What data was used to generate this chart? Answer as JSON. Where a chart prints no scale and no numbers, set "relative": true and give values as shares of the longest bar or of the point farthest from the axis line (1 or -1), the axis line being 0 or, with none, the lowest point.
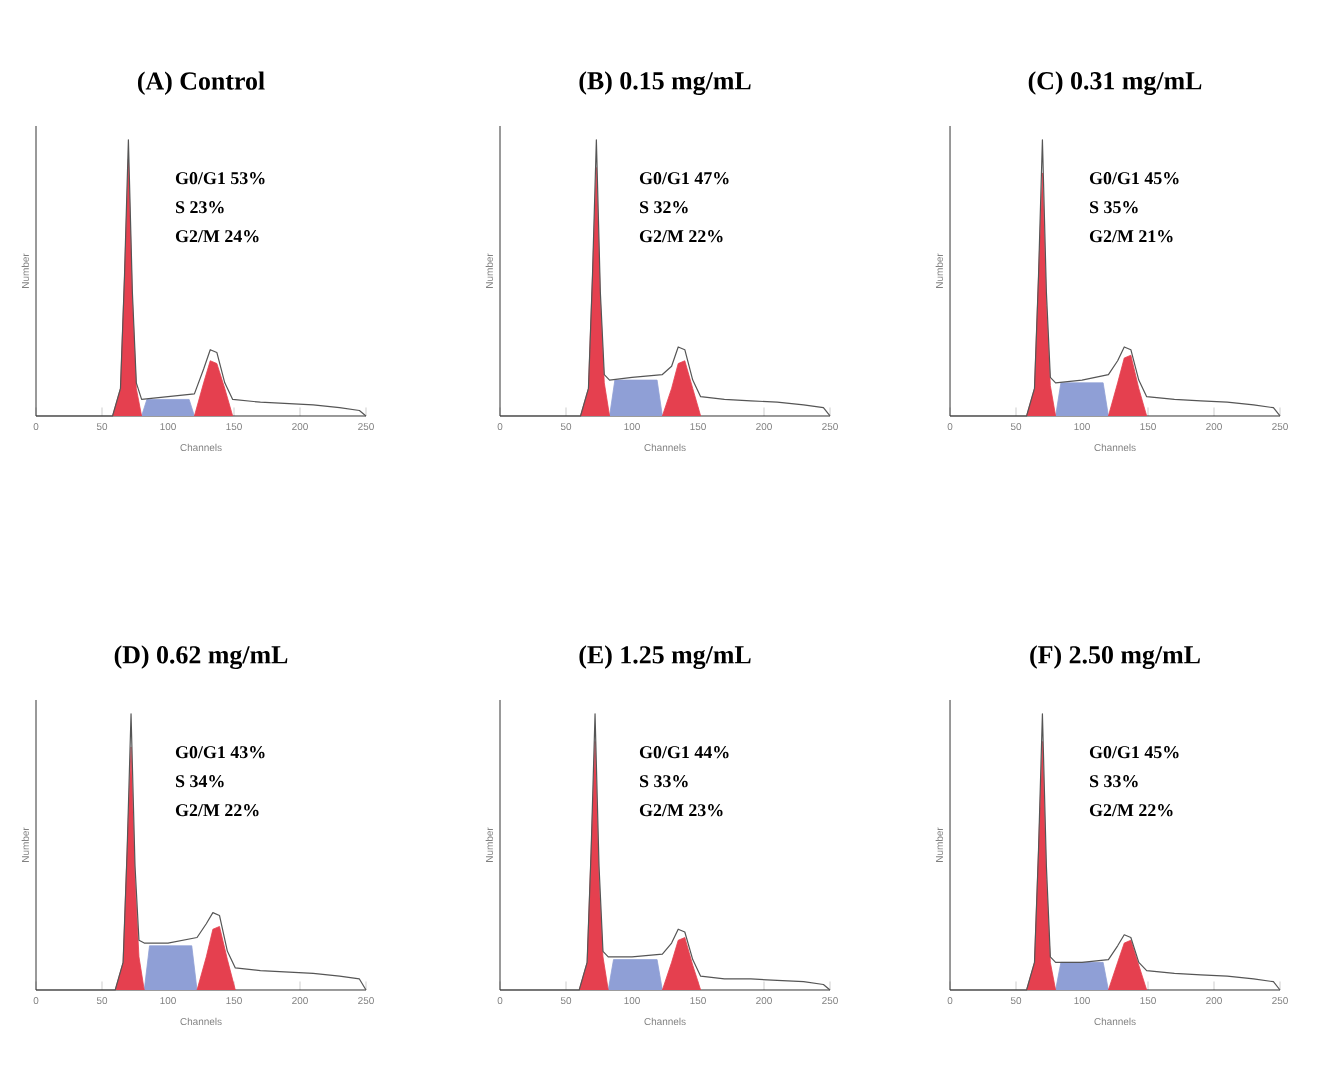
{
  "chart_data": [
    {
      "type": "area",
      "title": "(A) Control",
      "xlabel": "Channels",
      "ylabel": "Number",
      "relative": true,
      "xlim": [
        0,
        250
      ],
      "xticks": [
        0,
        50,
        100,
        150,
        200,
        250
      ],
      "annotations": [
        "G0/G1   53%",
        "S         23%",
        "G2/M    24%"
      ],
      "series": [
        {
          "color": "#8f9fd6",
          "x": [
            80,
            84,
            100,
            116,
            120
          ],
          "values": [
            0,
            0.06,
            0.06,
            0.06,
            0
          ]
        },
        {
          "color": "#e5404f",
          "x": [
            120,
            127,
            132,
            137,
            143,
            149
          ],
          "values": [
            0,
            0.12,
            0.2,
            0.19,
            0.1,
            0
          ]
        },
        {
          "color": "#e5404f",
          "x": [
            58,
            64,
            67,
            70,
            73,
            76,
            80
          ],
          "values": [
            0,
            0.1,
            0.5,
            0.93,
            0.42,
            0.1,
            0
          ]
        },
        {
          "type": "line",
          "color": "#555555",
          "x": [
            0,
            58,
            64,
            67,
            70,
            73,
            76,
            80,
            100,
            120,
            127,
            132,
            137,
            143,
            149,
            170,
            190,
            210,
            230,
            245,
            250
          ],
          "values": [
            0,
            0,
            0.1,
            0.5,
            1,
            0.45,
            0.12,
            0.06,
            0.07,
            0.08,
            0.17,
            0.24,
            0.23,
            0.12,
            0.06,
            0.05,
            0.045,
            0.04,
            0.03,
            0.02,
            0
          ]
        }
      ]
    },
    {
      "type": "area",
      "title": "(B) 0.15 mg/mL",
      "xlabel": "Channels",
      "ylabel": "Number",
      "relative": true,
      "xlim": [
        0,
        250
      ],
      "xticks": [
        0,
        50,
        100,
        150,
        200,
        250
      ],
      "annotations": [
        "G0/G1   47%",
        "S         32%",
        "G2/M    22%"
      ],
      "series": [
        {
          "color": "#8f9fd6",
          "x": [
            83,
            87,
            100,
            119,
            123
          ],
          "values": [
            0,
            0.13,
            0.13,
            0.13,
            0
          ]
        },
        {
          "color": "#e5404f",
          "x": [
            123,
            130,
            135,
            140,
            146,
            152
          ],
          "values": [
            0,
            0.1,
            0.19,
            0.2,
            0.1,
            0
          ]
        },
        {
          "color": "#e5404f",
          "x": [
            61,
            67,
            70,
            73,
            76,
            79,
            83
          ],
          "values": [
            0,
            0.1,
            0.5,
            0.9,
            0.42,
            0.12,
            0
          ]
        },
        {
          "type": "line",
          "color": "#555555",
          "x": [
            0,
            61,
            67,
            70,
            73,
            76,
            79,
            83,
            100,
            123,
            130,
            135,
            140,
            146,
            152,
            170,
            190,
            210,
            230,
            245,
            250
          ],
          "values": [
            0,
            0,
            0.1,
            0.5,
            1,
            0.45,
            0.15,
            0.13,
            0.14,
            0.15,
            0.18,
            0.25,
            0.24,
            0.13,
            0.07,
            0.06,
            0.055,
            0.05,
            0.04,
            0.03,
            0
          ]
        }
      ]
    },
    {
      "type": "area",
      "title": "(C) 0.31 mg/mL",
      "xlabel": "Channels",
      "ylabel": "Number",
      "relative": true,
      "xlim": [
        0,
        250
      ],
      "xticks": [
        0,
        50,
        100,
        150,
        200,
        250
      ],
      "annotations": [
        "G0/G1   45%",
        "S         35%",
        "G2/M    21%"
      ],
      "series": [
        {
          "color": "#8f9fd6",
          "x": [
            80,
            84,
            100,
            116,
            120
          ],
          "values": [
            0,
            0.12,
            0.12,
            0.12,
            0
          ]
        },
        {
          "color": "#e5404f",
          "x": [
            120,
            127,
            132,
            137,
            143,
            149
          ],
          "values": [
            0,
            0.12,
            0.21,
            0.22,
            0.1,
            0
          ]
        },
        {
          "color": "#e5404f",
          "x": [
            58,
            64,
            67,
            70,
            73,
            76,
            80
          ],
          "values": [
            0,
            0.1,
            0.5,
            0.88,
            0.4,
            0.11,
            0
          ]
        },
        {
          "type": "line",
          "color": "#555555",
          "x": [
            0,
            58,
            64,
            67,
            70,
            73,
            76,
            80,
            100,
            120,
            127,
            132,
            137,
            143,
            149,
            170,
            190,
            210,
            230,
            245,
            250
          ],
          "values": [
            0,
            0,
            0.1,
            0.5,
            1,
            0.45,
            0.14,
            0.12,
            0.13,
            0.15,
            0.2,
            0.25,
            0.24,
            0.13,
            0.07,
            0.06,
            0.055,
            0.05,
            0.04,
            0.03,
            0
          ]
        }
      ]
    },
    {
      "type": "area",
      "title": "(D) 0.62 mg/mL",
      "xlabel": "Channels",
      "ylabel": "Number",
      "relative": true,
      "xlim": [
        0,
        250
      ],
      "xticks": [
        0,
        50,
        100,
        150,
        200,
        250
      ],
      "annotations": [
        "G0/G1   43%",
        "S         34%",
        "G2/M    22%"
      ],
      "series": [
        {
          "color": "#8f9fd6",
          "x": [
            82,
            86,
            100,
            118,
            122
          ],
          "values": [
            0,
            0.16,
            0.16,
            0.16,
            0
          ]
        },
        {
          "color": "#e5404f",
          "x": [
            122,
            129,
            134,
            139,
            145,
            151
          ],
          "values": [
            0,
            0.12,
            0.22,
            0.23,
            0.11,
            0
          ]
        },
        {
          "color": "#e5404f",
          "x": [
            60,
            66,
            69,
            72,
            75,
            78,
            82
          ],
          "values": [
            0,
            0.1,
            0.5,
            0.88,
            0.4,
            0.12,
            0
          ]
        },
        {
          "type": "line",
          "color": "#555555",
          "x": [
            0,
            60,
            66,
            69,
            72,
            75,
            78,
            82,
            100,
            122,
            129,
            134,
            139,
            145,
            151,
            170,
            190,
            210,
            230,
            245,
            250
          ],
          "values": [
            0,
            0,
            0.1,
            0.5,
            1,
            0.45,
            0.18,
            0.17,
            0.17,
            0.19,
            0.24,
            0.28,
            0.27,
            0.14,
            0.08,
            0.07,
            0.065,
            0.06,
            0.05,
            0.04,
            0
          ]
        }
      ]
    },
    {
      "type": "area",
      "title": "(E) 1.25 mg/mL",
      "xlabel": "Channels",
      "ylabel": "Number",
      "relative": true,
      "xlim": [
        0,
        250
      ],
      "xticks": [
        0,
        50,
        100,
        150,
        200,
        250
      ],
      "annotations": [
        "G0/G1   44%",
        "S         33%",
        "G2/M    23%"
      ],
      "series": [
        {
          "color": "#8f9fd6",
          "x": [
            82,
            86,
            100,
            119,
            123
          ],
          "values": [
            0,
            0.11,
            0.11,
            0.11,
            0
          ]
        },
        {
          "color": "#e5404f",
          "x": [
            123,
            130,
            135,
            140,
            146,
            152
          ],
          "values": [
            0,
            0.1,
            0.18,
            0.19,
            0.09,
            0
          ]
        },
        {
          "color": "#e5404f",
          "x": [
            60,
            66,
            69,
            72,
            75,
            78,
            82
          ],
          "values": [
            0,
            0.1,
            0.5,
            0.9,
            0.4,
            0.12,
            0
          ]
        },
        {
          "type": "line",
          "color": "#555555",
          "x": [
            0,
            60,
            66,
            69,
            72,
            75,
            78,
            82,
            100,
            123,
            130,
            135,
            140,
            146,
            152,
            170,
            190,
            210,
            230,
            245,
            250
          ],
          "values": [
            0,
            0,
            0.1,
            0.5,
            1,
            0.45,
            0.14,
            0.12,
            0.12,
            0.13,
            0.17,
            0.22,
            0.21,
            0.11,
            0.05,
            0.04,
            0.04,
            0.035,
            0.03,
            0.02,
            0
          ]
        }
      ]
    },
    {
      "type": "area",
      "title": "(F) 2.50 mg/mL",
      "xlabel": "Channels",
      "ylabel": "Number",
      "relative": true,
      "xlim": [
        0,
        250
      ],
      "xticks": [
        0,
        50,
        100,
        150,
        200,
        250
      ],
      "annotations": [
        "G0/G1   45%",
        "S         33%",
        "G2/M    22%"
      ],
      "series": [
        {
          "color": "#8f9fd6",
          "x": [
            80,
            84,
            100,
            116,
            120
          ],
          "values": [
            0,
            0.1,
            0.1,
            0.1,
            0
          ]
        },
        {
          "color": "#e5404f",
          "x": [
            120,
            127,
            132,
            137,
            143,
            149
          ],
          "values": [
            0,
            0.1,
            0.17,
            0.18,
            0.09,
            0
          ]
        },
        {
          "color": "#e5404f",
          "x": [
            58,
            64,
            67,
            70,
            73,
            76,
            80
          ],
          "values": [
            0,
            0.1,
            0.5,
            0.9,
            0.4,
            0.1,
            0
          ]
        },
        {
          "type": "line",
          "color": "#555555",
          "x": [
            0,
            58,
            64,
            67,
            70,
            73,
            76,
            80,
            100,
            120,
            127,
            132,
            137,
            143,
            149,
            170,
            190,
            210,
            230,
            245,
            250
          ],
          "values": [
            0,
            0,
            0.1,
            0.5,
            1,
            0.45,
            0.12,
            0.1,
            0.1,
            0.11,
            0.16,
            0.2,
            0.19,
            0.1,
            0.07,
            0.06,
            0.055,
            0.05,
            0.04,
            0.03,
            0
          ]
        }
      ]
    }
  ]
}
